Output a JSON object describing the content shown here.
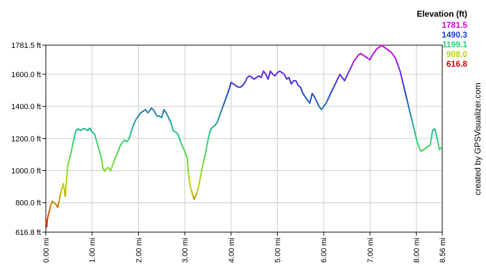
{
  "chart_data": {
    "type": "line",
    "ylabel": "Elevation (ft)",
    "xlim": [
      0,
      8.56
    ],
    "ylim": [
      616.8,
      1781.5
    ],
    "x_ticks": [
      {
        "value": 0.0,
        "label": "0.00 mi"
      },
      {
        "value": 1.0,
        "label": "1.00 mi"
      },
      {
        "value": 2.0,
        "label": "2.00 mi"
      },
      {
        "value": 3.0,
        "label": "3.00 mi"
      },
      {
        "value": 4.0,
        "label": "4.00 mi"
      },
      {
        "value": 5.0,
        "label": "5.00 mi"
      },
      {
        "value": 6.0,
        "label": "6.00 mi"
      },
      {
        "value": 7.0,
        "label": "7.00 mi"
      },
      {
        "value": 8.0,
        "label": "8.00 mi"
      },
      {
        "value": 8.56,
        "label": "8.56 mi"
      }
    ],
    "y_ticks": [
      {
        "value": 616.8,
        "label": "616.8 ft"
      },
      {
        "value": 800,
        "label": "800.0 ft"
      },
      {
        "value": 1000,
        "label": "1000.0 ft"
      },
      {
        "value": 1200,
        "label": "1200.0 ft"
      },
      {
        "value": 1400,
        "label": "1400.0 ft"
      },
      {
        "value": 1600,
        "label": "1600.0 ft"
      },
      {
        "value": 1781.5,
        "label": "1781.5 ft"
      }
    ],
    "grid": true,
    "legend": {
      "title": "Elevation (ft)",
      "placement": "top-right",
      "entries": [
        {
          "label": "1781.5",
          "color": "#e000e0"
        },
        {
          "label": "1490.3",
          "color": "#1a3fd6"
        },
        {
          "label": "1199.1",
          "color": "#22d37a"
        },
        {
          "label": "908.0",
          "color": "#b7d800"
        },
        {
          "label": "616.8",
          "color": "#e00000"
        }
      ]
    },
    "series": [
      {
        "x": [
          0.0,
          0.02,
          0.03,
          0.05,
          0.07,
          0.1,
          0.14,
          0.18,
          0.22,
          0.26,
          0.3,
          0.33,
          0.36,
          0.38,
          0.4,
          0.42,
          0.44,
          0.46,
          0.48,
          0.5,
          0.55,
          0.6,
          0.65,
          0.7,
          0.75,
          0.8,
          0.85,
          0.9,
          0.95,
          1.0,
          1.05,
          1.1,
          1.15,
          1.2,
          1.23,
          1.27,
          1.3,
          1.35,
          1.4,
          1.45,
          1.5,
          1.55,
          1.6,
          1.65,
          1.7,
          1.75,
          1.8,
          1.85,
          1.9,
          1.95,
          2.0,
          2.05,
          2.1,
          2.15,
          2.2,
          2.25,
          2.28,
          2.32,
          2.36,
          2.4,
          2.45,
          2.5,
          2.55,
          2.6,
          2.65,
          2.7,
          2.75,
          2.8,
          2.85,
          2.9,
          2.95,
          3.0,
          3.05,
          3.08,
          3.12,
          3.16,
          3.2,
          3.25,
          3.3,
          3.35,
          3.4,
          3.45,
          3.5,
          3.55,
          3.6,
          3.65,
          3.7,
          3.75,
          3.8,
          3.85,
          3.9,
          3.95,
          4.0,
          4.05,
          4.1,
          4.15,
          4.2,
          4.25,
          4.3,
          4.35,
          4.4,
          4.45,
          4.5,
          4.55,
          4.6,
          4.65,
          4.7,
          4.75,
          4.8,
          4.85,
          4.9,
          4.95,
          5.0,
          5.05,
          5.1,
          5.15,
          5.2,
          5.25,
          5.3,
          5.35,
          5.4,
          5.45,
          5.5,
          5.55,
          5.6,
          5.65,
          5.7,
          5.75,
          5.8,
          5.85,
          5.9,
          5.95,
          6.0,
          6.05,
          6.1,
          6.15,
          6.2,
          6.25,
          6.3,
          6.35,
          6.4,
          6.45,
          6.5,
          6.55,
          6.6,
          6.65,
          6.7,
          6.75,
          6.8,
          6.85,
          6.9,
          6.95,
          7.0,
          7.05,
          7.1,
          7.15,
          7.2,
          7.25,
          7.3,
          7.35,
          7.4,
          7.45,
          7.5,
          7.55,
          7.6,
          7.65,
          7.7,
          7.75,
          7.8,
          7.85,
          7.9,
          7.95,
          8.0,
          8.05,
          8.1,
          8.15,
          8.2,
          8.25,
          8.3,
          8.35,
          8.4,
          8.45,
          8.5,
          8.56
        ],
        "y": [
          700,
          650,
          690,
          720,
          740,
          780,
          810,
          800,
          790,
          770,
          830,
          870,
          900,
          920,
          880,
          840,
          920,
          990,
          1040,
          1060,
          1120,
          1190,
          1250,
          1260,
          1250,
          1260,
          1260,
          1250,
          1265,
          1240,
          1230,
          1180,
          1130,
          1080,
          1020,
          995,
          1010,
          1020,
          1000,
          1040,
          1080,
          1110,
          1150,
          1175,
          1190,
          1180,
          1200,
          1250,
          1290,
          1320,
          1340,
          1360,
          1370,
          1380,
          1360,
          1375,
          1390,
          1380,
          1360,
          1340,
          1340,
          1330,
          1380,
          1360,
          1330,
          1300,
          1250,
          1240,
          1230,
          1190,
          1150,
          1120,
          1080,
          980,
          900,
          860,
          820,
          850,
          900,
          980,
          1050,
          1110,
          1190,
          1250,
          1270,
          1280,
          1300,
          1340,
          1380,
          1420,
          1460,
          1500,
          1550,
          1540,
          1530,
          1520,
          1520,
          1530,
          1550,
          1580,
          1590,
          1580,
          1570,
          1580,
          1590,
          1580,
          1620,
          1600,
          1570,
          1620,
          1600,
          1590,
          1610,
          1620,
          1610,
          1600,
          1570,
          1580,
          1540,
          1560,
          1560,
          1530,
          1520,
          1480,
          1460,
          1440,
          1420,
          1480,
          1460,
          1430,
          1400,
          1380,
          1400,
          1420,
          1450,
          1480,
          1510,
          1540,
          1570,
          1600,
          1580,
          1560,
          1590,
          1620,
          1650,
          1680,
          1700,
          1720,
          1730,
          1720,
          1710,
          1700,
          1690,
          1720,
          1740,
          1760,
          1770,
          1780,
          1770,
          1760,
          1750,
          1740,
          1720,
          1700,
          1660,
          1620,
          1560,
          1500,
          1440,
          1380,
          1320,
          1260,
          1200,
          1150,
          1120,
          1130,
          1140,
          1150,
          1160,
          1250,
          1260,
          1200,
          1130,
          1150
        ]
      }
    ]
  }
}
